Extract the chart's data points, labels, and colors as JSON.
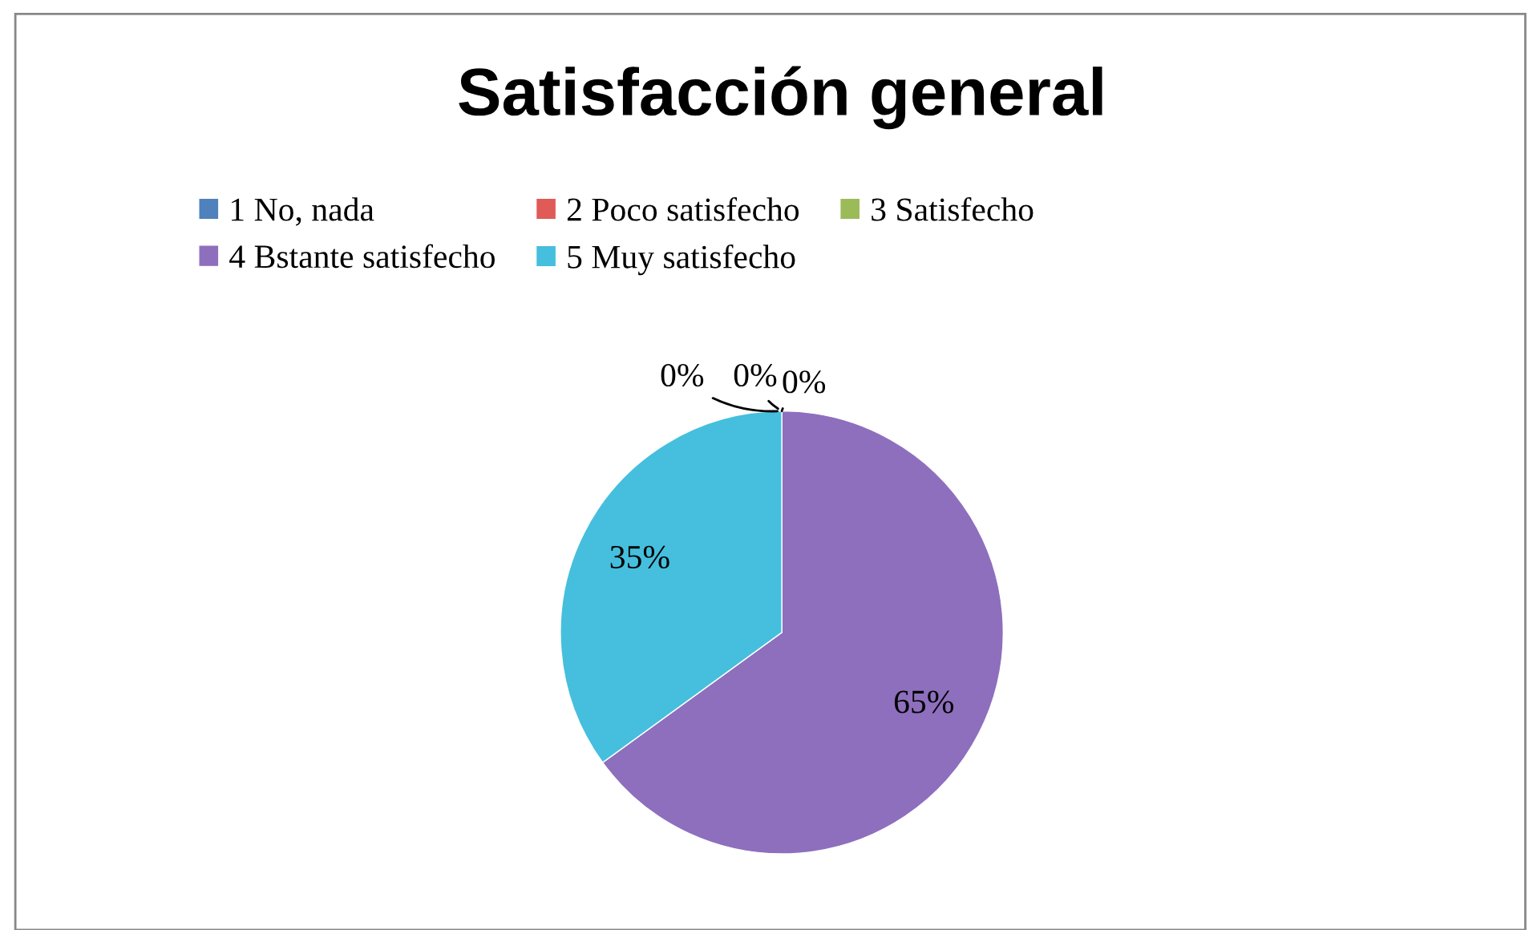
{
  "chart_data": {
    "type": "pie",
    "title": "Satisfacción general",
    "categories": [
      "1 No, nada",
      "2 Poco satisfecho",
      "3 Satisfecho",
      "4 Bstante satisfecho",
      "5 Muy satisfecho"
    ],
    "values": [
      0,
      0,
      0,
      65,
      35
    ],
    "colors": [
      "#4f81bd",
      "#e05a57",
      "#9bbb59",
      "#8e6fbd",
      "#45bfdd"
    ],
    "value_labels": [
      "0%",
      "0%",
      "0%",
      "65%",
      "35%"
    ],
    "legend": "top"
  }
}
